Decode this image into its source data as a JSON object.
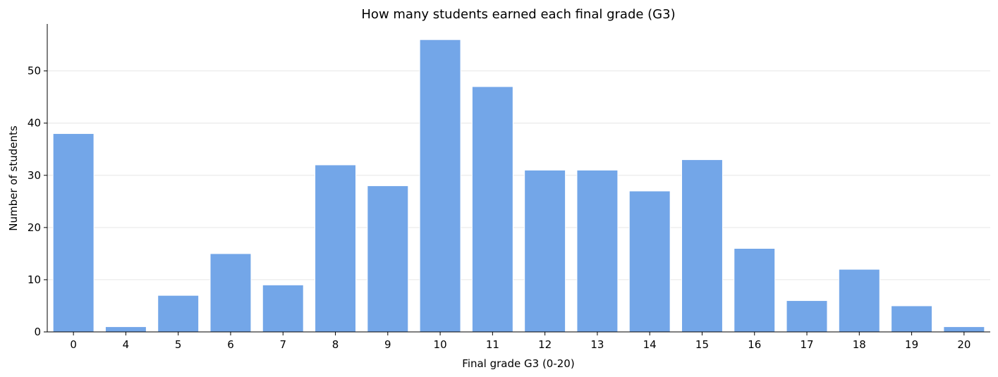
{
  "chart_data": {
    "type": "bar",
    "title": "How many students earned each final grade (G3)",
    "xlabel": "Final grade G3 (0-20)",
    "ylabel": "Number of students",
    "categories": [
      "0",
      "4",
      "5",
      "6",
      "7",
      "8",
      "9",
      "10",
      "11",
      "12",
      "13",
      "14",
      "15",
      "16",
      "17",
      "18",
      "19",
      "20"
    ],
    "values": [
      38,
      1,
      7,
      15,
      9,
      32,
      28,
      56,
      47,
      31,
      31,
      27,
      33,
      16,
      6,
      12,
      5,
      1
    ],
    "ylim": [
      0,
      59
    ],
    "yticks": [
      0,
      10,
      20,
      30,
      40,
      50
    ],
    "grid": "horizontal",
    "bar_color": "#73a6e8"
  }
}
